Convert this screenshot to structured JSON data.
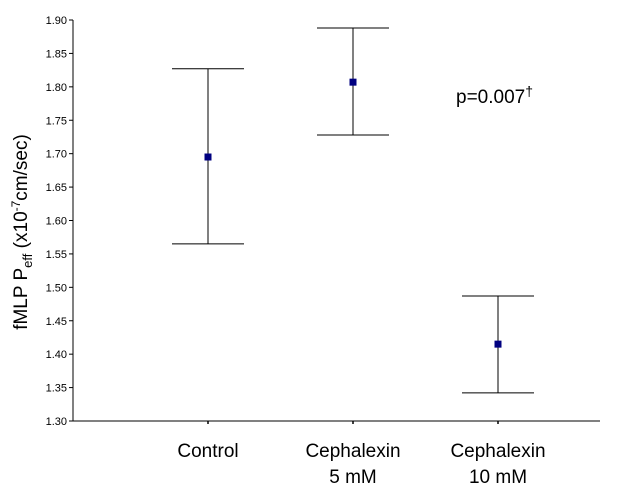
{
  "chart_data": {
    "type": "scatter",
    "categories": [
      {
        "id": "control",
        "line1": "Control",
        "line2": ""
      },
      {
        "id": "ceph5",
        "line1": "Cephalexin",
        "line2": "5 mM"
      },
      {
        "id": "ceph10",
        "line1": "Cephalexin",
        "line2": "10 mM"
      }
    ],
    "points": [
      {
        "category": "control",
        "mean": 1.695,
        "upper": 1.827,
        "lower": 1.565
      },
      {
        "category": "ceph5",
        "mean": 1.807,
        "upper": 1.888,
        "lower": 1.728
      },
      {
        "category": "ceph10",
        "mean": 1.415,
        "upper": 1.487,
        "lower": 1.342
      }
    ],
    "ylim": [
      1.3,
      1.9
    ],
    "yticks": [
      "1.30",
      "1.35",
      "1.40",
      "1.45",
      "1.50",
      "1.55",
      "1.60",
      "1.65",
      "1.70",
      "1.75",
      "1.80",
      "1.85",
      "1.90"
    ],
    "ylabel": {
      "p1": "fMLP P",
      "sub": "eff",
      "p2": " (x10",
      "sup": "-7",
      "p3": "cm/sec)"
    },
    "annotation": {
      "text": "p=0.007",
      "sup": "†"
    },
    "grid": false,
    "marker_color": "#000080"
  }
}
